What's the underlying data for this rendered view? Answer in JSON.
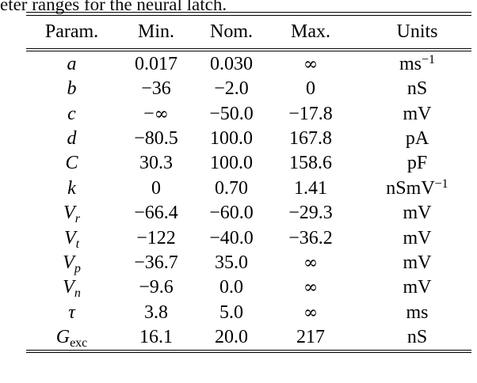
{
  "caption": {
    "visible_text": "eter ranges for the neural latch."
  },
  "table": {
    "columns": [
      "Param.",
      "Min.",
      "Nom.",
      "Max.",
      "Units"
    ],
    "rows": [
      {
        "param": "a",
        "param_sub": "",
        "sub_upright": false,
        "min": "0.017",
        "nom": "0.030",
        "max": "∞",
        "unit": "ms",
        "unit_exp": "−1"
      },
      {
        "param": "b",
        "param_sub": "",
        "sub_upright": false,
        "min": "−36",
        "nom": "−2.0",
        "max": "0",
        "unit": "nS",
        "unit_exp": ""
      },
      {
        "param": "c",
        "param_sub": "",
        "sub_upright": false,
        "min": "−∞",
        "nom": "−50.0",
        "max": "−17.8",
        "unit": "mV",
        "unit_exp": ""
      },
      {
        "param": "d",
        "param_sub": "",
        "sub_upright": false,
        "min": "−80.5",
        "nom": "100.0",
        "max": "167.8",
        "unit": "pA",
        "unit_exp": ""
      },
      {
        "param": "C",
        "param_sub": "",
        "sub_upright": false,
        "min": "30.3",
        "nom": "100.0",
        "max": "158.6",
        "unit": "pF",
        "unit_exp": ""
      },
      {
        "param": "k",
        "param_sub": "",
        "sub_upright": false,
        "min": "0",
        "nom": "0.70",
        "max": "1.41",
        "unit": "nSmV",
        "unit_exp": "−1"
      },
      {
        "param": "V",
        "param_sub": "r",
        "sub_upright": false,
        "min": "−66.4",
        "nom": "−60.0",
        "max": "−29.3",
        "unit": "mV",
        "unit_exp": ""
      },
      {
        "param": "V",
        "param_sub": "t",
        "sub_upright": false,
        "min": "−122",
        "nom": "−40.0",
        "max": "−36.2",
        "unit": "mV",
        "unit_exp": ""
      },
      {
        "param": "V",
        "param_sub": "p",
        "sub_upright": false,
        "min": "−36.7",
        "nom": "35.0",
        "max": "∞",
        "unit": "mV",
        "unit_exp": ""
      },
      {
        "param": "V",
        "param_sub": "n",
        "sub_upright": false,
        "min": "−9.6",
        "nom": "0.0",
        "max": "∞",
        "unit": "mV",
        "unit_exp": ""
      },
      {
        "param": "τ",
        "param_sub": "",
        "sub_upright": false,
        "min": "3.8",
        "nom": "5.0",
        "max": "∞",
        "unit": "ms",
        "unit_exp": ""
      },
      {
        "param": "G",
        "param_sub": "exc",
        "sub_upright": true,
        "min": "16.1",
        "nom": "20.0",
        "max": "217",
        "unit": "nS",
        "unit_exp": ""
      }
    ],
    "rule_color": "#000000"
  }
}
